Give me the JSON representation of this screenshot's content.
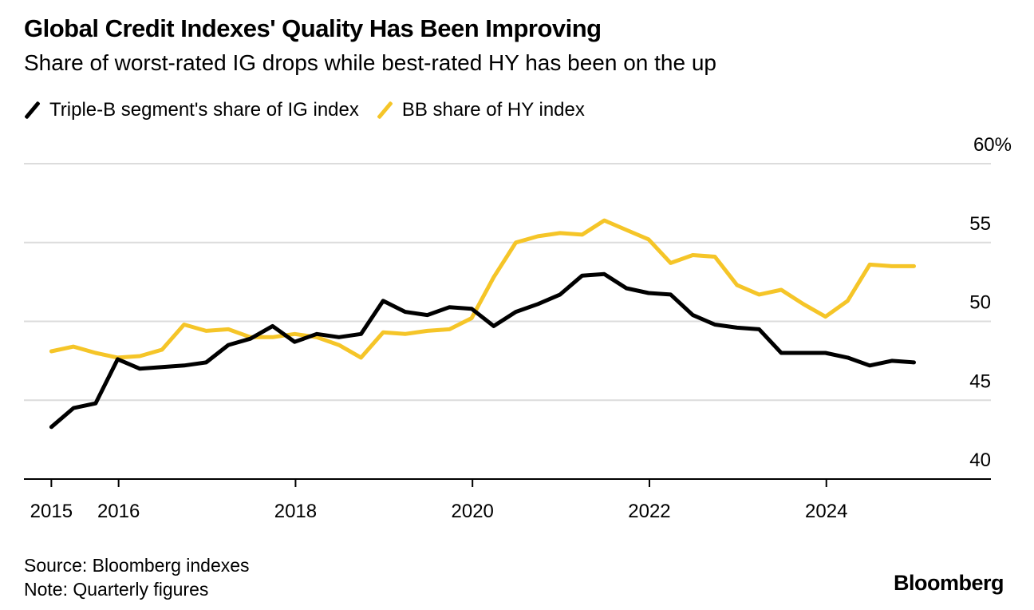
{
  "header": {
    "title": "Global Credit Indexes' Quality Has Been Improving",
    "subtitle": "Share of worst-rated IG drops while best-rated HY has been on the up"
  },
  "footer": {
    "source": "Source: Bloomberg indexes",
    "note": "Note: Quarterly figures",
    "brand": "Bloomberg"
  },
  "chart_data": {
    "type": "line",
    "title": "Global Credit Indexes' Quality Has Been Improving",
    "subtitle": "Share of worst-rated IG drops while best-rated HY has been on the up",
    "xlabel": "",
    "ylabel": "",
    "ylim": [
      40,
      60
    ],
    "y_ticks": [
      40,
      45,
      50,
      55,
      60
    ],
    "y_tick_labels": [
      "40",
      "45",
      "50",
      "55",
      "60%"
    ],
    "y_axis_side": "right",
    "x_ticks": [
      2015.24,
      2016,
      2018,
      2020,
      2022,
      2024
    ],
    "x_tick_labels": [
      "2015",
      "2016",
      "2018",
      "2020",
      "2022",
      "2024"
    ],
    "xlim": [
      2014.93,
      2025.86
    ],
    "grid": true,
    "legend_position": "top-left",
    "x": [
      2015.24,
      2015.49,
      2015.74,
      2015.99,
      2016.24,
      2016.49,
      2016.74,
      2016.99,
      2017.24,
      2017.49,
      2017.74,
      2017.99,
      2018.24,
      2018.49,
      2018.74,
      2018.99,
      2019.24,
      2019.49,
      2019.74,
      2019.99,
      2020.24,
      2020.49,
      2020.74,
      2020.99,
      2021.24,
      2021.49,
      2021.74,
      2021.99,
      2022.24,
      2022.49,
      2022.74,
      2022.99,
      2023.24,
      2023.49,
      2023.74,
      2023.99,
      2024.24,
      2024.49,
      2024.74,
      2024.99
    ],
    "series": [
      {
        "name": "Triple-B segment's share of IG index",
        "color": "#000000",
        "values": [
          43.3,
          44.5,
          44.8,
          47.6,
          47.0,
          47.1,
          47.2,
          47.4,
          48.5,
          48.9,
          49.7,
          48.7,
          49.2,
          49.0,
          49.2,
          51.3,
          50.6,
          50.4,
          50.9,
          50.8,
          49.7,
          50.6,
          51.1,
          51.7,
          52.9,
          53.0,
          52.1,
          51.8,
          51.7,
          50.4,
          49.8,
          49.6,
          49.5,
          48.0,
          48.0,
          48.0,
          47.7,
          47.2,
          47.5,
          47.4
        ]
      },
      {
        "name": "BB share of HY index",
        "color": "#F5C528",
        "values": [
          48.1,
          48.4,
          48.0,
          47.7,
          47.8,
          48.2,
          49.8,
          49.4,
          49.5,
          49.0,
          49.0,
          49.2,
          49.0,
          48.5,
          47.7,
          49.3,
          49.2,
          49.4,
          49.5,
          50.2,
          52.8,
          55.0,
          55.4,
          55.6,
          55.5,
          56.4,
          55.8,
          55.2,
          53.7,
          54.2,
          54.1,
          52.3,
          51.7,
          52.0,
          51.1,
          50.3,
          51.3,
          53.6,
          53.5,
          53.5
        ]
      }
    ]
  }
}
